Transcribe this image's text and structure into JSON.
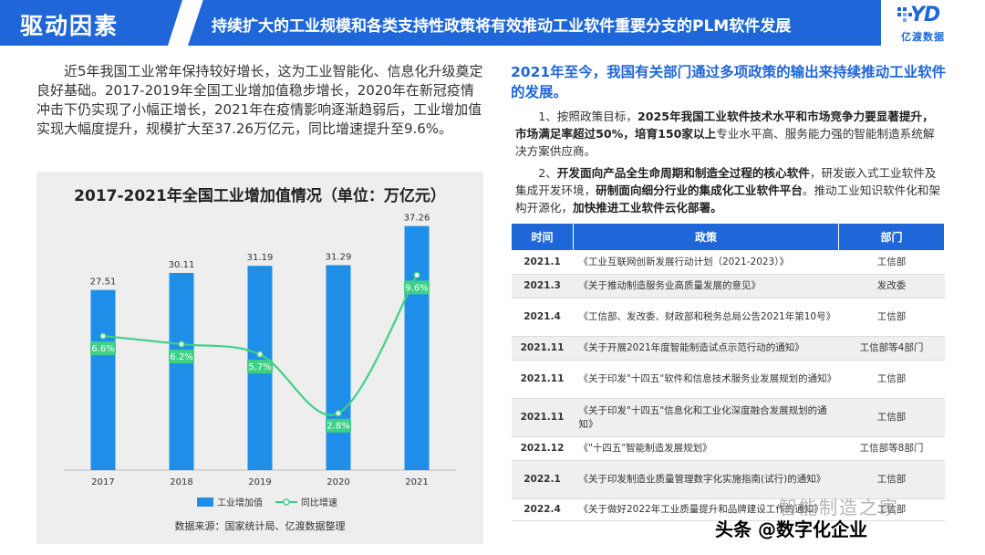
{
  "header": {
    "section_label": "驱动因素",
    "headline": "持续扩大的工业规模和各类支持性政策将有效推动工业软件重要分支的PLM软件发展",
    "logo_mark": "YD",
    "logo_text": "亿渡数据"
  },
  "intro_text": "近5年我国工业常年保持较好增长，这为工业智能化、信息化升级奠定良好基础。2017-2019年全国工业增加值稳步增长，2020年在新冠疫情冲击下仍实现了小幅正增长，2021年在疫情影响逐渐趋弱后，工业增加值实现大幅度提升，规模扩大至37.26万亿元，同比增速提升至9.6%。",
  "chart_data": {
    "type": "bar",
    "title": "2017-2021年全国工业增加值情况（单位：万亿元）",
    "categories": [
      "2017",
      "2018",
      "2019",
      "2020",
      "2021"
    ],
    "series": [
      {
        "name": "工业增加值",
        "type": "bar",
        "values": [
          27.51,
          30.11,
          31.19,
          31.29,
          37.26
        ],
        "labels": [
          "27.51",
          "30.11",
          "31.19",
          "31.29",
          "37.26"
        ],
        "color": "#1f8ee8"
      },
      {
        "name": "同比增速",
        "type": "line",
        "values": [
          6.6,
          6.2,
          5.7,
          2.8,
          9.6
        ],
        "labels": [
          "6.6%",
          "6.2%",
          "5.7%",
          "2.8%",
          "9.6%"
        ],
        "color": "#3ed186"
      }
    ],
    "ylim_bar": [
      0,
      40
    ],
    "ylim_line": [
      0,
      12
    ],
    "legend_position": "bottom",
    "grid": false
  },
  "chart_source": "数据来源：国家统计局、亿渡数据整理",
  "right": {
    "title": "2021年至今，我国有关部门通过多项政策的输出来持续推动工业软件的发展。",
    "p1_pre": "1、按照政策目标，",
    "p1_bold": "2025年我国工业软件技术水平和市场竞争力要显著提升，市场满足率超过50%，培育150家以上",
    "p1_post": "专业水平高、服务能力强的智能制造系统解决方案供应商。",
    "p2_pre": "2、",
    "p2_bold1": "开发面向产品全生命周期和制造全过程的核心软件",
    "p2_mid1": "，研发嵌入式工业软件及集成开发环境，",
    "p2_bold2": "研制面向细分行业的集成化工业软件平台",
    "p2_mid2": "。推动工业知识软件化和架构开源化，",
    "p2_bold3": "加快推进工业软件云化部署。"
  },
  "table": {
    "headers": [
      "时间",
      "政策",
      "部门"
    ],
    "rows": [
      {
        "time": "2021.1",
        "policy": "《工业互联网创新发展行动计划（2021-2023）》",
        "dept": "工信部"
      },
      {
        "time": "2021.3",
        "policy": "《关于推动制造服务业高质量发展的意见》",
        "dept": "发改委"
      },
      {
        "time": "2021.4",
        "policy": "《工信部、发改委、财政部和税务总局公告2021年第10号》",
        "dept": "工信部"
      },
      {
        "time": "2021.11",
        "policy": "《关于开展2021年度智能制造试点示范行动的通知》",
        "dept": "工信部等4部门"
      },
      {
        "time": "2021.11",
        "policy": "《关于印发\"十四五\"软件和信息技术服务业发展规划的通知》",
        "dept": "工信部"
      },
      {
        "time": "2021.11",
        "policy": "《关于印发\"十四五\"信息化和工业化深度融合发展规划的通知》",
        "dept": "工信部"
      },
      {
        "time": "2021.12",
        "policy": "《\"十四五\"智能制造发展规划》",
        "dept": "工信部等8部门"
      },
      {
        "time": "2022.1",
        "policy": "《关于印发制造业质量管理数字化实施指南(试行)的通知》",
        "dept": "工信部"
      },
      {
        "time": "2022.4",
        "policy": "《关于做好2022年工业质量提升和品牌建设工作的通知》",
        "dept": "工信部"
      }
    ]
  },
  "watermark": {
    "line1": "智能制造之家",
    "line2": "头条 @数字化企业"
  }
}
